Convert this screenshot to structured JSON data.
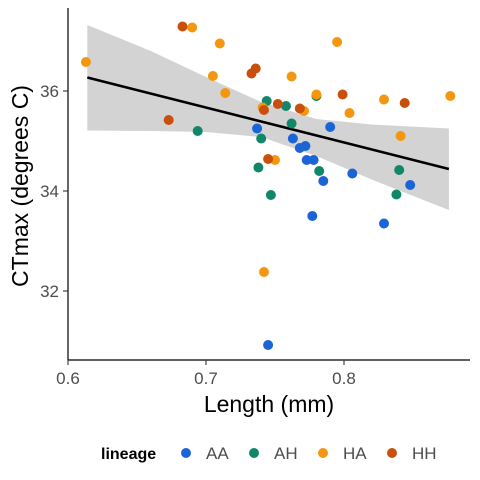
{
  "chart_data": {
    "type": "scatter",
    "xlabel": "Length (mm)",
    "ylabel": "CTmax (degrees C)",
    "xlim": [
      0.6,
      0.88
    ],
    "ylim": [
      30.7,
      37.6
    ],
    "xticks": [
      {
        "value": 0.6,
        "label": "0.6"
      },
      {
        "value": 0.7,
        "label": "0.7"
      },
      {
        "value": 0.8,
        "label": "0.8"
      }
    ],
    "yticks": [
      {
        "value": 32,
        "label": "32"
      },
      {
        "value": 34,
        "label": "34"
      },
      {
        "value": 36,
        "label": "36"
      }
    ],
    "grid": false,
    "legend": {
      "title": "lineage",
      "placement": "bottom",
      "entries": [
        {
          "label": "AA",
          "color": "#1b64d6"
        },
        {
          "label": "AH",
          "color": "#11876a"
        },
        {
          "label": "HA",
          "color": "#f5960f"
        },
        {
          "label": "HH",
          "color": "#c9500c"
        }
      ]
    },
    "trend": {
      "line": [
        [
          0.614,
          36.27
        ],
        [
          0.876,
          34.44
        ]
      ],
      "band_upper": [
        [
          0.614,
          37.32
        ],
        [
          0.66,
          36.8
        ],
        [
          0.7,
          36.28
        ],
        [
          0.74,
          35.78
        ],
        [
          0.78,
          35.44
        ],
        [
          0.82,
          35.33
        ],
        [
          0.876,
          35.25
        ]
      ],
      "band_lower": [
        [
          0.614,
          35.21
        ],
        [
          0.66,
          35.2
        ],
        [
          0.7,
          35.18
        ],
        [
          0.74,
          35.08
        ],
        [
          0.78,
          34.7
        ],
        [
          0.82,
          34.23
        ],
        [
          0.876,
          33.62
        ]
      ],
      "band_color": "#d3d3d3",
      "line_color": "#000000"
    },
    "series": [
      {
        "name": "AA",
        "color": "#1b64d6",
        "points": [
          [
            0.737,
            35.25
          ],
          [
            0.763,
            35.05
          ],
          [
            0.768,
            34.86
          ],
          [
            0.772,
            34.9
          ],
          [
            0.773,
            34.62
          ],
          [
            0.778,
            34.62
          ],
          [
            0.785,
            34.2
          ],
          [
            0.777,
            33.5
          ],
          [
            0.79,
            35.28
          ],
          [
            0.806,
            34.35
          ],
          [
            0.829,
            33.35
          ],
          [
            0.848,
            34.12
          ],
          [
            0.745,
            30.92
          ]
        ]
      },
      {
        "name": "AH",
        "color": "#11876a",
        "points": [
          [
            0.694,
            35.2
          ],
          [
            0.744,
            35.8
          ],
          [
            0.758,
            35.7
          ],
          [
            0.78,
            35.9
          ],
          [
            0.762,
            35.35
          ],
          [
            0.74,
            35.05
          ],
          [
            0.738,
            34.47
          ],
          [
            0.747,
            33.92
          ],
          [
            0.782,
            34.4
          ],
          [
            0.84,
            34.42
          ],
          [
            0.838,
            33.93
          ]
        ]
      },
      {
        "name": "HA",
        "color": "#f5960f",
        "points": [
          [
            0.613,
            36.58
          ],
          [
            0.69,
            37.27
          ],
          [
            0.71,
            36.95
          ],
          [
            0.705,
            36.3
          ],
          [
            0.714,
            35.96
          ],
          [
            0.741,
            35.67
          ],
          [
            0.762,
            36.29
          ],
          [
            0.795,
            36.98
          ],
          [
            0.804,
            35.56
          ],
          [
            0.78,
            35.93
          ],
          [
            0.771,
            35.6
          ],
          [
            0.829,
            35.83
          ],
          [
            0.841,
            35.1
          ],
          [
            0.877,
            35.9
          ],
          [
            0.75,
            34.62
          ],
          [
            0.742,
            32.38
          ]
        ]
      },
      {
        "name": "HH",
        "color": "#c9500c",
        "points": [
          [
            0.683,
            37.29
          ],
          [
            0.733,
            36.35
          ],
          [
            0.736,
            36.45
          ],
          [
            0.742,
            35.62
          ],
          [
            0.752,
            35.74
          ],
          [
            0.768,
            35.65
          ],
          [
            0.799,
            35.93
          ],
          [
            0.844,
            35.76
          ],
          [
            0.673,
            35.42
          ],
          [
            0.745,
            34.64
          ]
        ]
      }
    ]
  }
}
